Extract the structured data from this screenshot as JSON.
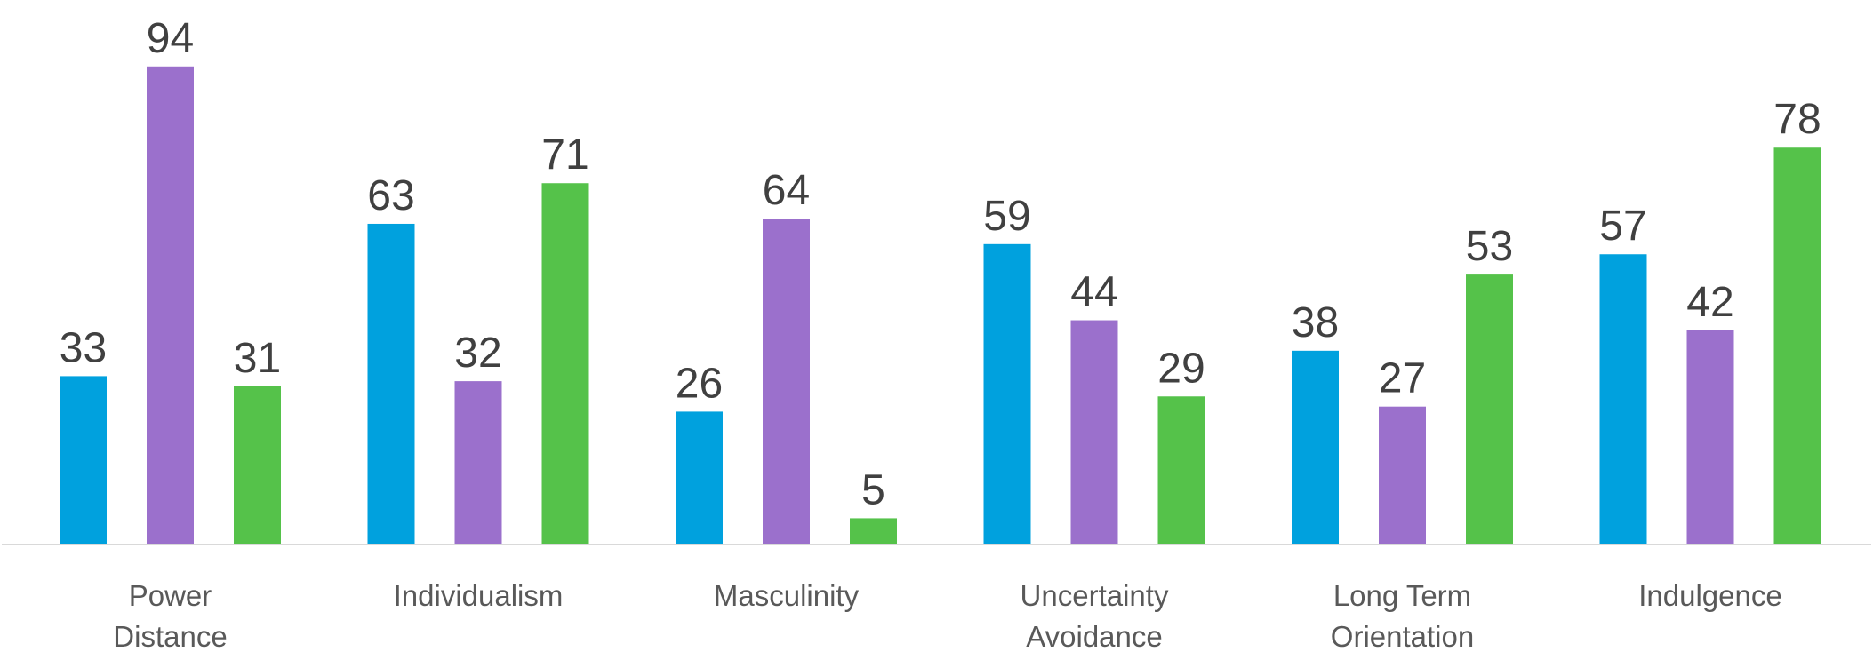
{
  "chart_data": {
    "type": "bar",
    "categories": [
      [
        "Power",
        "Distance"
      ],
      [
        "Individualism"
      ],
      [
        "Masculinity"
      ],
      [
        "Uncertainty",
        "Avoidance"
      ],
      [
        "Long Term",
        "Orientation"
      ],
      [
        "Indulgence"
      ]
    ],
    "series": [
      {
        "color": "#00A1DE",
        "values": [
          33,
          63,
          26,
          59,
          38,
          57
        ]
      },
      {
        "color": "#9B70CC",
        "values": [
          94,
          32,
          64,
          44,
          27,
          42
        ]
      },
      {
        "color": "#55C24A",
        "values": [
          31,
          71,
          5,
          29,
          53,
          78
        ]
      }
    ],
    "ylim": [
      0,
      100
    ],
    "grid": false,
    "legend": "none",
    "axis_color": "#D9D9D9"
  }
}
